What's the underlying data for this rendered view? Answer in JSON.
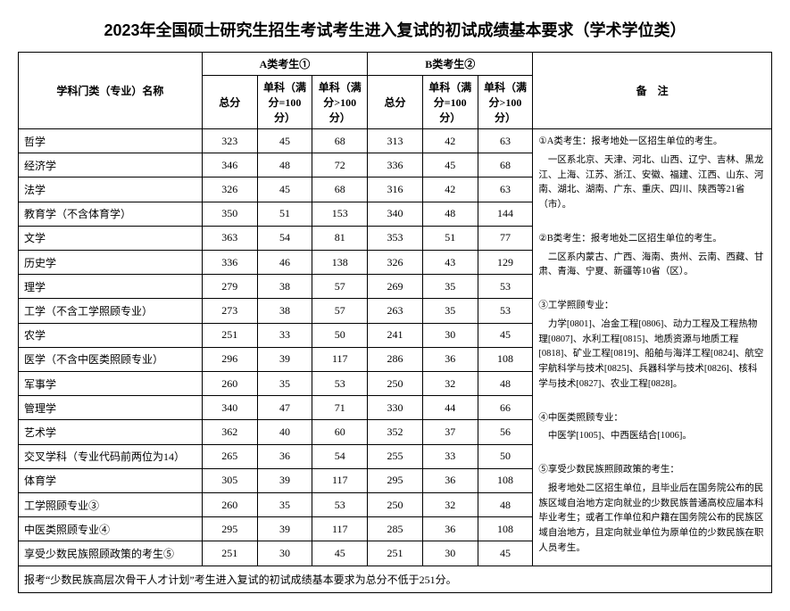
{
  "title": "2023年全国硕士研究生招生考试考生进入复试的初试成绩基本要求（学术学位类）",
  "header": {
    "subject": "学科门类（专业）名称",
    "catA": "A类考生①",
    "catB": "B类考生②",
    "notes": "备　注",
    "total": "总分",
    "single100": "单科（满分=100分）",
    "singleGt100": "单科（满分>100分）"
  },
  "rows": [
    {
      "name": "哲学",
      "a": [
        323,
        45,
        68
      ],
      "b": [
        313,
        42,
        63
      ]
    },
    {
      "name": "经济学",
      "a": [
        346,
        48,
        72
      ],
      "b": [
        336,
        45,
        68
      ]
    },
    {
      "name": "法学",
      "a": [
        326,
        45,
        68
      ],
      "b": [
        316,
        42,
        63
      ]
    },
    {
      "name": "教育学（不含体育学）",
      "a": [
        350,
        51,
        153
      ],
      "b": [
        340,
        48,
        144
      ]
    },
    {
      "name": "文学",
      "a": [
        363,
        54,
        81
      ],
      "b": [
        353,
        51,
        77
      ]
    },
    {
      "name": "历史学",
      "a": [
        336,
        46,
        138
      ],
      "b": [
        326,
        43,
        129
      ]
    },
    {
      "name": "理学",
      "a": [
        279,
        38,
        57
      ],
      "b": [
        269,
        35,
        53
      ]
    },
    {
      "name": "工学（不含工学照顾专业）",
      "a": [
        273,
        38,
        57
      ],
      "b": [
        263,
        35,
        53
      ]
    },
    {
      "name": "农学",
      "a": [
        251,
        33,
        50
      ],
      "b": [
        241,
        30,
        45
      ]
    },
    {
      "name": "医学（不含中医类照顾专业）",
      "a": [
        296,
        39,
        117
      ],
      "b": [
        286,
        36,
        108
      ]
    },
    {
      "name": "军事学",
      "a": [
        260,
        35,
        53
      ],
      "b": [
        250,
        32,
        48
      ]
    },
    {
      "name": "管理学",
      "a": [
        340,
        47,
        71
      ],
      "b": [
        330,
        44,
        66
      ]
    },
    {
      "name": "艺术学",
      "a": [
        362,
        40,
        60
      ],
      "b": [
        352,
        37,
        56
      ]
    },
    {
      "name": "交叉学科（专业代码前两位为14）",
      "a": [
        265,
        36,
        54
      ],
      "b": [
        255,
        33,
        50
      ]
    },
    {
      "name": "体育学",
      "a": [
        305,
        39,
        117
      ],
      "b": [
        295,
        36,
        108
      ]
    },
    {
      "name": "工学照顾专业③",
      "a": [
        260,
        35,
        53
      ],
      "b": [
        250,
        32,
        48
      ]
    },
    {
      "name": "中医类照顾专业④",
      "a": [
        295,
        39,
        117
      ],
      "b": [
        285,
        36,
        108
      ]
    },
    {
      "name": "享受少数民族照顾政策的考生⑤",
      "a": [
        251,
        30,
        45
      ],
      "b": [
        251,
        30,
        45
      ]
    }
  ],
  "footnote": "报考“少数民族高层次骨干人才计划”考生进入复试的初试成绩基本要求为总分不低于251分。",
  "notes": {
    "n1_title": "①A类考生：报考地处一区招生单位的考生。",
    "n1_body": "　一区系北京、天津、河北、山西、辽宁、吉林、黑龙江、上海、江苏、浙江、安徽、福建、江西、山东、河南、湖北、湖南、广东、重庆、四川、陕西等21省（市）。",
    "n2_title": "②B类考生：报考地处二区招生单位的考生。",
    "n2_body": "　二区系内蒙古、广西、海南、贵州、云南、西藏、甘肃、青海、宁夏、新疆等10省（区）。",
    "n3_title": "③工学照顾专业：",
    "n3_body": "　力学[0801]、冶金工程[0806]、动力工程及工程热物理[0807]、水利工程[0815]、地质资源与地质工程[0818]、矿业工程[0819]、船舶与海洋工程[0824]、航空宇航科学与技术[0825]、兵器科学与技术[0826]、核科学与技术[0827]、农业工程[0828]。",
    "n4_title": "④中医类照顾专业：",
    "n4_body": "　中医学[1005]、中西医结合[1006]。",
    "n5_title": "⑤享受少数民族照顾政策的考生：",
    "n5_body": "　报考地处二区招生单位，且毕业后在国务院公布的民族区域自治地方定向就业的少数民族普通高校应届本科毕业考生；或者工作单位和户籍在国务院公布的民族区域自治地方，且定向就业单位为原单位的少数民族在职人员考生。"
  },
  "style": {
    "border_color": "#000000",
    "background": "#ffffff",
    "title_fontsize": 18,
    "body_fontsize": 12,
    "notes_fontsize": 10.5
  }
}
